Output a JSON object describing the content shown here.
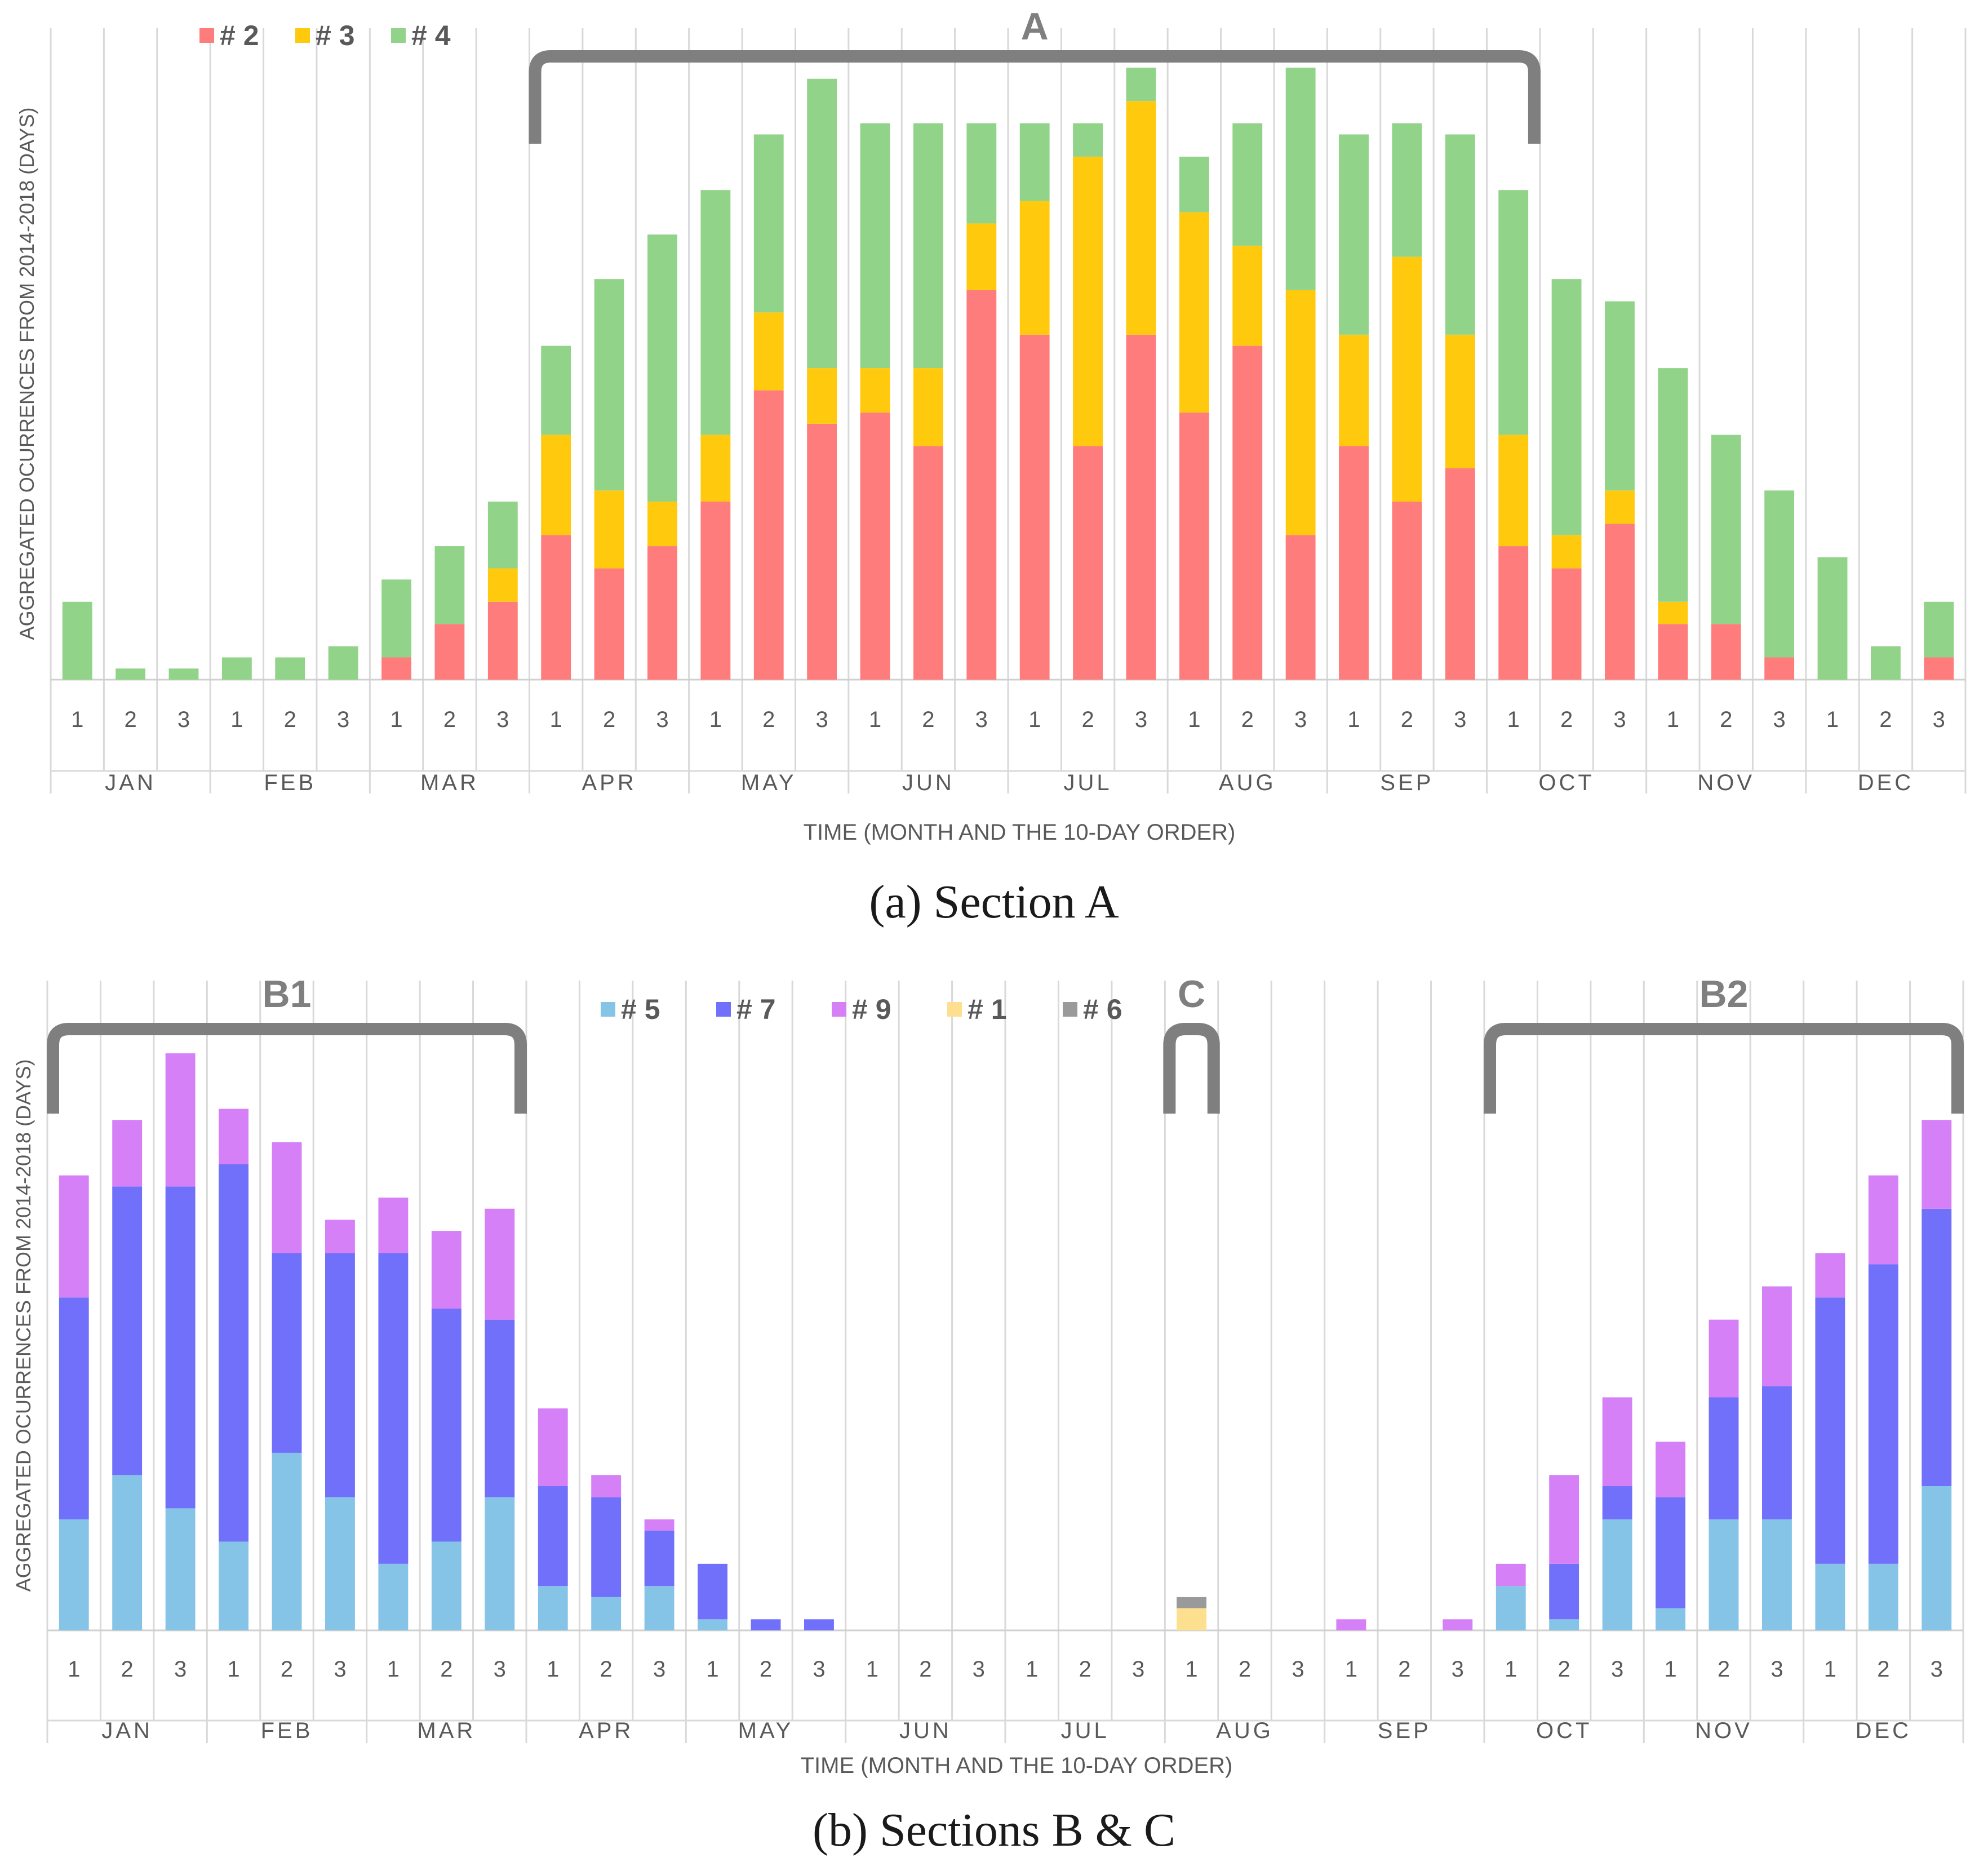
{
  "chart_data": [
    {
      "type": "bar",
      "stacked": true,
      "panel_label": "(a) Section A",
      "title": "",
      "xlabel": "TIME (MONTH AND THE 10-DAY ORDER)",
      "ylabel": "AGGREGATED OCURRENCES FROM 2014-2018 (DAYS)",
      "months": [
        "JAN",
        "FEB",
        "MAR",
        "APR",
        "MAY",
        "JUN",
        "JUL",
        "AUG",
        "SEP",
        "OCT",
        "NOV",
        "DEC"
      ],
      "dekads": [
        "1",
        "2",
        "3"
      ],
      "ylim": [
        0,
        55
      ],
      "legend_position": "top-left",
      "series": [
        {
          "name": "# 2",
          "color": "#ff7c7c",
          "values": [
            0,
            0,
            0,
            0,
            0,
            0,
            2,
            5,
            7,
            13,
            10,
            12,
            16,
            26,
            23,
            24,
            21,
            35,
            31,
            21,
            31,
            24,
            30,
            13,
            21,
            16,
            19,
            12,
            10,
            14,
            5,
            5,
            2,
            0,
            0,
            2
          ]
        },
        {
          "name": "# 3",
          "color": "#ffc90e",
          "values": [
            0,
            0,
            0,
            0,
            0,
            0,
            0,
            0,
            3,
            9,
            7,
            4,
            6,
            7,
            5,
            4,
            7,
            6,
            12,
            26,
            21,
            18,
            9,
            22,
            10,
            22,
            12,
            10,
            3,
            3,
            2,
            0,
            0,
            0,
            0,
            0
          ]
        },
        {
          "name": "# 4",
          "color": "#92d38a",
          "values": [
            7,
            1,
            1,
            2,
            2,
            3,
            7,
            7,
            6,
            8,
            19,
            24,
            22,
            16,
            26,
            22,
            22,
            9,
            7,
            3,
            3,
            5,
            11,
            20,
            18,
            12,
            18,
            22,
            23,
            17,
            21,
            17,
            15,
            11,
            3,
            5
          ]
        }
      ],
      "bracket": {
        "label": "A",
        "from": "APR 1",
        "to": "OCT 1"
      }
    },
    {
      "type": "bar",
      "stacked": true,
      "panel_label": "(b) Sections B & C",
      "title": "",
      "xlabel": "TIME (MONTH AND THE 10-DAY ORDER)",
      "ylabel": "AGGREGATED OCURRENCES FROM 2014-2018 (DAYS)",
      "months": [
        "JAN",
        "FEB",
        "MAR",
        "APR",
        "MAY",
        "JUN",
        "JUL",
        "AUG",
        "SEP",
        "OCT",
        "NOV",
        "DEC"
      ],
      "dekads": [
        "1",
        "2",
        "3"
      ],
      "ylim": [
        0,
        55
      ],
      "legend_position": "top-center",
      "series": [
        {
          "name": "# 5",
          "color": "#85c4e6",
          "values": [
            10,
            14,
            11,
            8,
            16,
            12,
            6,
            8,
            12,
            4,
            3,
            4,
            1,
            0,
            0,
            0,
            0,
            0,
            0,
            0,
            0,
            0,
            0,
            0,
            0,
            0,
            0,
            4,
            1,
            10,
            2,
            10,
            10,
            6,
            6,
            13
          ]
        },
        {
          "name": "# 7",
          "color": "#7070fa",
          "values": [
            20,
            26,
            29,
            34,
            18,
            22,
            28,
            21,
            16,
            9,
            9,
            5,
            5,
            1,
            1,
            0,
            0,
            0,
            0,
            0,
            0,
            0,
            0,
            0,
            0,
            0,
            0,
            0,
            5,
            3,
            10,
            11,
            12,
            24,
            27,
            25
          ]
        },
        {
          "name": "# 9",
          "color": "#d580f6",
          "values": [
            11,
            6,
            12,
            5,
            10,
            3,
            5,
            7,
            10,
            7,
            2,
            1,
            0,
            0,
            0,
            0,
            0,
            0,
            0,
            0,
            0,
            0,
            0,
            0,
            1,
            0,
            1,
            2,
            8,
            8,
            5,
            7,
            9,
            4,
            8,
            8
          ]
        },
        {
          "name": "# 1",
          "color": "#fde08f",
          "values": [
            0,
            0,
            0,
            0,
            0,
            0,
            0,
            0,
            0,
            0,
            0,
            0,
            0,
            0,
            0,
            0,
            0,
            0,
            0,
            0,
            0,
            2,
            0,
            0,
            0,
            0,
            0,
            0,
            0,
            0,
            0,
            0,
            0,
            0,
            0,
            0
          ]
        },
        {
          "name": "# 6",
          "color": "#9a9a9a",
          "values": [
            0,
            0,
            0,
            0,
            0,
            0,
            0,
            0,
            0,
            0,
            0,
            0,
            0,
            0,
            0,
            0,
            0,
            0,
            0,
            0,
            0,
            1,
            0,
            0,
            0,
            0,
            0,
            0,
            0,
            0,
            0,
            0,
            0,
            0,
            0,
            0
          ]
        }
      ],
      "brackets": [
        {
          "label": "B1",
          "from": "JAN 1",
          "to": "MAR 3"
        },
        {
          "label": "C",
          "from": "AUG 1",
          "to": "AUG 1"
        },
        {
          "label": "B2",
          "from": "OCT 1",
          "to": "DEC 3"
        }
      ]
    }
  ]
}
